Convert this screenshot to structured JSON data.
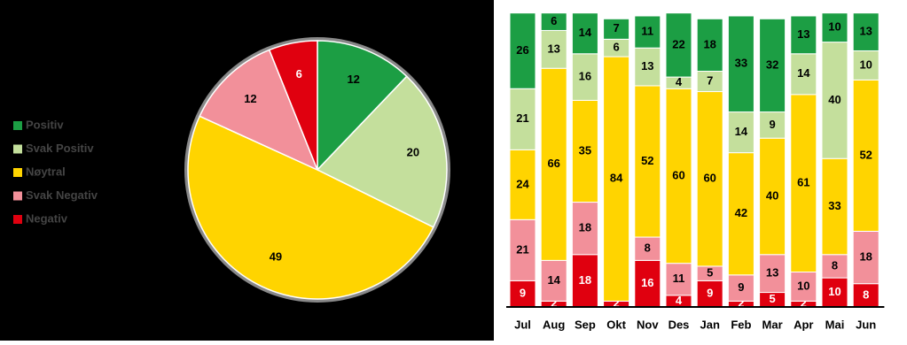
{
  "chart_data": [
    {
      "type": "pie",
      "categories": [
        "Positiv",
        "Svak Positiv",
        "Nøytral",
        "Svak Negativ",
        "Negativ"
      ],
      "values": [
        12,
        20,
        49,
        12,
        6
      ],
      "colors": [
        "#1c9e44",
        "#c4df9c",
        "#ffd400",
        "#f2909a",
        "#e0000f"
      ],
      "legend": "left"
    },
    {
      "type": "stacked_bar",
      "categories": [
        "Jul",
        "Aug",
        "Sep",
        "Okt",
        "Nov",
        "Des",
        "Jan",
        "Feb",
        "Mar",
        "Apr",
        "Mai",
        "Jun"
      ],
      "ylim": [
        0,
        100
      ],
      "series": [
        {
          "color": "#e0000f",
          "values": [
            9,
            2,
            18,
            2,
            16,
            4,
            9,
            2,
            5,
            2,
            10,
            8
          ]
        },
        {
          "color": "#f2909a",
          "values": [
            21,
            14,
            18,
            null,
            8,
            11,
            5,
            9,
            13,
            10,
            8,
            18
          ]
        },
        {
          "color": "#ffd400",
          "values": [
            24,
            66,
            35,
            84,
            52,
            60,
            60,
            42,
            40,
            61,
            33,
            52
          ]
        },
        {
          "color": "#c4df9c",
          "values": [
            21,
            13,
            16,
            6,
            13,
            4,
            7,
            14,
            9,
            14,
            40,
            10
          ]
        },
        {
          "color": "#1c9e44",
          "values": [
            26,
            6,
            14,
            7,
            11,
            22,
            18,
            33,
            32,
            13,
            10,
            13
          ]
        }
      ]
    }
  ]
}
